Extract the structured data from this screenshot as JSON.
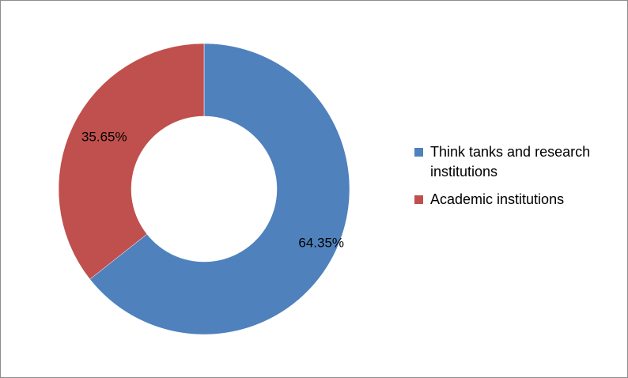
{
  "chart_data": {
    "type": "pie",
    "variant": "donut",
    "title": "",
    "legend_position": "right",
    "slices": [
      {
        "label": "Think tanks and research institutions",
        "value": 64.35,
        "value_label": "64.35%",
        "color": "#4F81BD"
      },
      {
        "label": "Academic institutions",
        "value": 35.65,
        "value_label": "35.65%",
        "color": "#C0504D"
      }
    ]
  }
}
